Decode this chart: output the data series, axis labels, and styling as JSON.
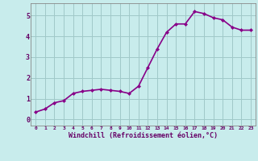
{
  "x": [
    0,
    1,
    2,
    3,
    4,
    5,
    6,
    7,
    8,
    9,
    10,
    11,
    12,
    13,
    14,
    15,
    16,
    17,
    18,
    19,
    20,
    21,
    22,
    23
  ],
  "y": [
    0.35,
    0.5,
    0.8,
    0.9,
    1.25,
    1.35,
    1.4,
    1.45,
    1.4,
    1.35,
    1.25,
    1.6,
    2.5,
    3.4,
    4.2,
    4.6,
    4.6,
    5.2,
    5.1,
    4.9,
    4.8,
    4.45,
    4.3,
    4.3
  ],
  "line_color": "#880088",
  "marker": "D",
  "marker_size": 2.0,
  "bg_color": "#c8ecec",
  "grid_color": "#a0c8c8",
  "xlabel": "Windchill (Refroidissement éolien,°C)",
  "xlabel_color": "#660066",
  "tick_label_color": "#660066",
  "ylim": [
    -0.3,
    5.6
  ],
  "xlim": [
    -0.5,
    23.5
  ],
  "yticks": [
    0,
    1,
    2,
    3,
    4,
    5
  ],
  "xticks": [
    0,
    1,
    2,
    3,
    4,
    5,
    6,
    7,
    8,
    9,
    10,
    11,
    12,
    13,
    14,
    15,
    16,
    17,
    18,
    19,
    20,
    21,
    22,
    23
  ],
  "xtick_labels": [
    "0",
    "1",
    "2",
    "3",
    "4",
    "5",
    "6",
    "7",
    "8",
    "9",
    "10",
    "11",
    "12",
    "13",
    "14",
    "15",
    "16",
    "17",
    "18",
    "19",
    "20",
    "21",
    "22",
    "23"
  ],
  "linewidth": 1.2,
  "spine_color": "#888888"
}
